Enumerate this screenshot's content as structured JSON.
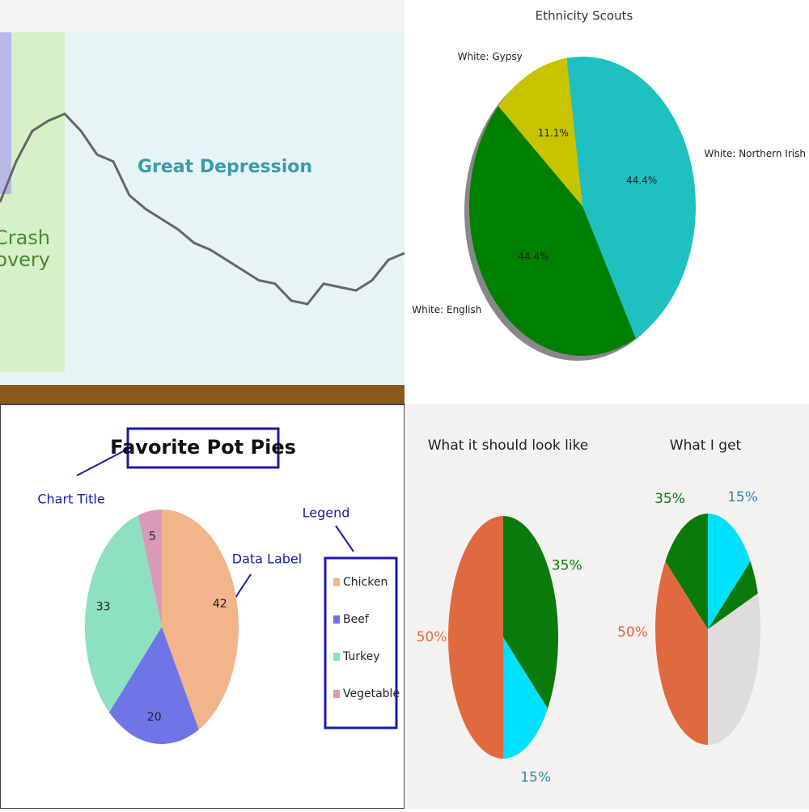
{
  "chart_data": [
    {
      "type": "line",
      "values": [
        50,
        62,
        71,
        74,
        76,
        71,
        64,
        62,
        52,
        48,
        45,
        42,
        38,
        36,
        33,
        30,
        27,
        26,
        21,
        20,
        26,
        25,
        24,
        27,
        33,
        35
      ],
      "ylim": [
        0,
        100
      ],
      "color": "#666666",
      "annotations": [
        "Great Depression",
        "Crash",
        "Recovery"
      ]
    },
    {
      "type": "pie",
      "title": "Ethnicity Scouts",
      "categories": [
        "White: Northern Irish",
        "White: English",
        "White: Gypsy"
      ],
      "values": [
        44.4,
        44.4,
        11.1
      ],
      "value_labels": [
        "44.4%",
        "44.4%",
        "11.1%"
      ],
      "colors": [
        "#1ec0c0",
        "#008000",
        "#c8c400"
      ]
    },
    {
      "type": "pie",
      "title": "Favorite Pot Pies",
      "values": [
        42,
        20,
        33,
        5
      ],
      "colors": [
        "#f2b48a",
        "#6f74e6",
        "#8de0c0",
        "#d89ab8"
      ],
      "legend": [
        "Chicken",
        "Beef",
        "Turkey",
        "Vegetable"
      ],
      "annotations": [
        "Chart Title",
        "Data Label",
        "Legend"
      ]
    },
    {
      "type": "pie",
      "title": "What it should look like",
      "values": [
        35,
        15,
        50
      ],
      "value_labels": [
        "35%",
        "15%",
        "50%"
      ],
      "colors": [
        "#0a7a0a",
        "#00e0ff",
        "#e06a40"
      ]
    },
    {
      "type": "pie",
      "title": "What I get",
      "values": [
        15,
        5,
        30,
        35,
        15
      ],
      "colors": [
        "#00e0ff",
        "#0a7a0a",
        "#dddddd",
        "#e06a40",
        "#0a7a0a"
      ],
      "annotations": [
        "35%",
        "15%",
        "50%"
      ]
    }
  ]
}
